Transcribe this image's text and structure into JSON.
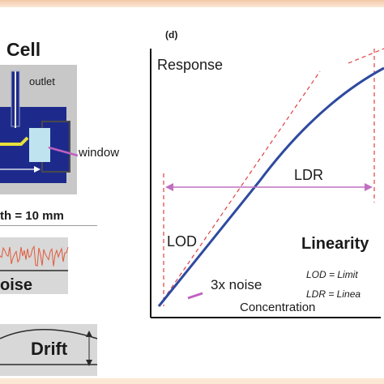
{
  "flow_cell": {
    "title": "Cell",
    "outlet_label": "outlet",
    "window_label": "window",
    "path_length_label": "th = 10 mm"
  },
  "noise_panel": {
    "label": "oise"
  },
  "drift_panel": {
    "label": "Drift"
  },
  "linearity_plot": {
    "panel_label": "(d)",
    "y_axis_label": "Response",
    "x_axis_label": "Concentration",
    "ldr_label": "LDR",
    "lod_label": "LOD",
    "noise_label": "3x noise",
    "title": "Linearity",
    "definitions": [
      "LOD = Limit",
      "LDR = Linea"
    ]
  },
  "colors": {
    "response_curve": "#2e4aa0",
    "ldr_arrow": "#c070c0",
    "guide_dashes": "#e04040",
    "cell_body": "#1d2a8c",
    "cell_window": "#bfe4ef",
    "flow_path": "#e8e03a"
  }
}
